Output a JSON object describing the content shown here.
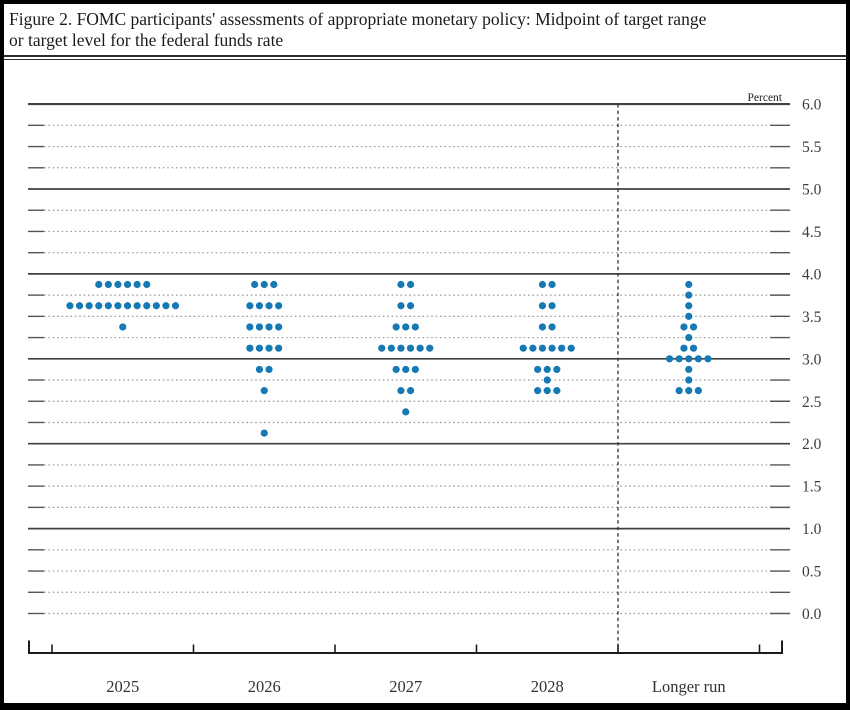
{
  "figure_title_line1": "Figure 2. FOMC participants' assessments of appropriate monetary policy: Midpoint of target range",
  "figure_title_line2": "or target level for the federal funds rate",
  "chart_data": {
    "type": "scatter",
    "subtype": "fomc-dot-plot",
    "title": "Figure 2. FOMC participants' assessments of appropriate monetary policy: Midpoint of target range or target level for the federal funds rate",
    "unit_label": "Percent",
    "xlabel": "",
    "ylabel": "Percent",
    "ylim": [
      0.0,
      6.0
    ],
    "y_tick_step": 0.5,
    "y_grid_step": 0.25,
    "y_tick_labels": [
      "6.0",
      "5.5",
      "5.0",
      "4.5",
      "4.0",
      "3.5",
      "3.0",
      "2.5",
      "2.0",
      "1.5",
      "1.0",
      "0.5",
      "0.0"
    ],
    "grid": "solid lines at integer percents 1-6, dotted lines at quarter-percent steps including 0.0",
    "legend_position": "none",
    "categories": [
      "2025",
      "2026",
      "2027",
      "2028",
      "Longer run"
    ],
    "separator_before_category": "Longer run",
    "series": [
      {
        "category": "2025",
        "dots": [
          {
            "rate": 3.875,
            "count": 6
          },
          {
            "rate": 3.625,
            "count": 12
          },
          {
            "rate": 3.375,
            "count": 1
          }
        ]
      },
      {
        "category": "2026",
        "dots": [
          {
            "rate": 3.875,
            "count": 3
          },
          {
            "rate": 3.625,
            "count": 4
          },
          {
            "rate": 3.375,
            "count": 4
          },
          {
            "rate": 3.125,
            "count": 4
          },
          {
            "rate": 2.875,
            "count": 2
          },
          {
            "rate": 2.625,
            "count": 1
          },
          {
            "rate": 2.125,
            "count": 1
          }
        ]
      },
      {
        "category": "2027",
        "dots": [
          {
            "rate": 3.875,
            "count": 2
          },
          {
            "rate": 3.625,
            "count": 2
          },
          {
            "rate": 3.375,
            "count": 3
          },
          {
            "rate": 3.125,
            "count": 6
          },
          {
            "rate": 2.875,
            "count": 3
          },
          {
            "rate": 2.625,
            "count": 2
          },
          {
            "rate": 2.375,
            "count": 1
          }
        ]
      },
      {
        "category": "2028",
        "dots": [
          {
            "rate": 3.875,
            "count": 2
          },
          {
            "rate": 3.625,
            "count": 2
          },
          {
            "rate": 3.375,
            "count": 2
          },
          {
            "rate": 3.125,
            "count": 6
          },
          {
            "rate": 2.875,
            "count": 3
          },
          {
            "rate": 2.75,
            "count": 1
          },
          {
            "rate": 2.625,
            "count": 3
          }
        ]
      },
      {
        "category": "Longer run",
        "dots": [
          {
            "rate": 3.875,
            "count": 1
          },
          {
            "rate": 3.75,
            "count": 1
          },
          {
            "rate": 3.625,
            "count": 1
          },
          {
            "rate": 3.5,
            "count": 1
          },
          {
            "rate": 3.375,
            "count": 2
          },
          {
            "rate": 3.25,
            "count": 1
          },
          {
            "rate": 3.125,
            "count": 2
          },
          {
            "rate": 3.0,
            "count": 5
          },
          {
            "rate": 2.875,
            "count": 1
          },
          {
            "rate": 2.75,
            "count": 1
          },
          {
            "rate": 2.625,
            "count": 3
          }
        ]
      }
    ],
    "colors": {
      "dot": "#1679b4",
      "solid_grid": "#404040",
      "dotted_grid": "#9b9b9b",
      "axis": "#1c1c1c",
      "text": "#3c3c3c"
    }
  }
}
